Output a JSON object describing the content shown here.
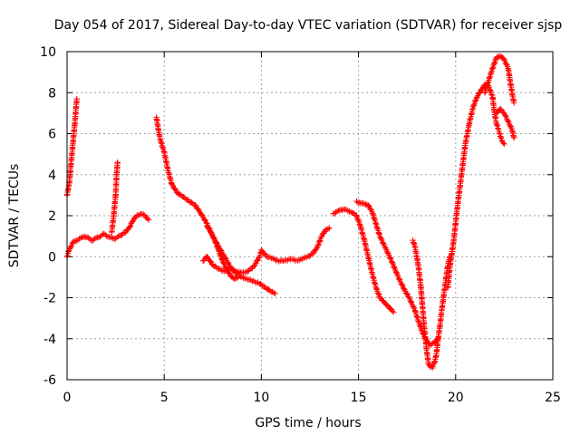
{
  "chart_data": {
    "type": "scatter",
    "title": "Day 054 of 2017, Sidereal Day-to-day VTEC variation (SDTVAR) for receiver sjsp",
    "xlabel": "GPS time / hours",
    "ylabel": "SDTVAR / TECUs",
    "xlim": [
      0,
      25
    ],
    "ylim": [
      -6,
      10
    ],
    "xticks": [
      0,
      5,
      10,
      15,
      20,
      25
    ],
    "yticks": [
      -6,
      -4,
      -2,
      0,
      2,
      4,
      6,
      8,
      10
    ],
    "grid": true,
    "legend": "none",
    "marker": "+",
    "series_color": "#ff0000",
    "series": [
      {
        "points": [
          [
            0.0,
            3.0
          ],
          [
            0.1,
            3.5
          ],
          [
            0.2,
            4.5
          ],
          [
            0.3,
            5.5
          ],
          [
            0.4,
            6.5
          ],
          [
            0.5,
            7.7
          ]
        ]
      },
      {
        "points": [
          [
            0.0,
            0.0
          ],
          [
            0.1,
            0.3
          ],
          [
            0.2,
            0.5
          ],
          [
            0.3,
            0.7
          ],
          [
            0.5,
            0.8
          ],
          [
            0.7,
            0.9
          ],
          [
            0.9,
            1.0
          ],
          [
            1.1,
            0.9
          ],
          [
            1.3,
            0.8
          ],
          [
            1.5,
            0.9
          ],
          [
            1.7,
            1.0
          ],
          [
            1.9,
            1.1
          ],
          [
            2.1,
            1.0
          ],
          [
            2.3,
            0.9
          ],
          [
            2.5,
            0.9
          ],
          [
            2.7,
            1.0
          ],
          [
            3.0,
            1.2
          ],
          [
            3.2,
            1.4
          ],
          [
            3.4,
            1.8
          ],
          [
            3.6,
            2.0
          ],
          [
            3.8,
            2.1
          ],
          [
            4.0,
            2.0
          ],
          [
            4.2,
            1.8
          ]
        ]
      },
      {
        "points": [
          [
            2.3,
            1.2
          ],
          [
            2.4,
            2.0
          ],
          [
            2.5,
            3.0
          ],
          [
            2.55,
            4.0
          ],
          [
            2.6,
            4.6
          ]
        ]
      },
      {
        "points": [
          [
            4.6,
            6.8
          ],
          [
            4.7,
            6.2
          ],
          [
            4.8,
            5.7
          ],
          [
            5.0,
            5.1
          ],
          [
            5.2,
            4.2
          ],
          [
            5.4,
            3.5
          ],
          [
            5.7,
            3.1
          ],
          [
            6.0,
            2.9
          ],
          [
            6.3,
            2.7
          ],
          [
            6.6,
            2.5
          ],
          [
            6.9,
            2.1
          ],
          [
            7.2,
            1.6
          ],
          [
            7.5,
            1.0
          ],
          [
            7.8,
            0.5
          ],
          [
            8.1,
            0.0
          ],
          [
            8.4,
            -0.5
          ],
          [
            8.7,
            -0.8
          ],
          [
            9.0,
            -1.0
          ],
          [
            9.3,
            -1.1
          ],
          [
            9.6,
            -1.2
          ],
          [
            9.9,
            -1.3
          ],
          [
            10.2,
            -1.5
          ],
          [
            10.5,
            -1.7
          ],
          [
            10.7,
            -1.8
          ]
        ]
      },
      {
        "points": [
          [
            7.0,
            -0.2
          ],
          [
            7.2,
            0.0
          ],
          [
            7.5,
            -0.4
          ],
          [
            7.8,
            -0.6
          ],
          [
            8.1,
            -0.7
          ],
          [
            8.4,
            -0.6
          ],
          [
            8.7,
            -0.7
          ],
          [
            9.0,
            -0.8
          ],
          [
            9.3,
            -0.7
          ],
          [
            9.6,
            -0.5
          ],
          [
            9.9,
            0.0
          ],
          [
            10.0,
            0.3
          ],
          [
            10.3,
            0.0
          ],
          [
            10.6,
            -0.1
          ],
          [
            10.9,
            -0.2
          ],
          [
            11.2,
            -0.2
          ],
          [
            11.5,
            -0.1
          ],
          [
            11.8,
            -0.2
          ],
          [
            12.1,
            -0.1
          ],
          [
            12.4,
            0.0
          ],
          [
            12.7,
            0.2
          ],
          [
            12.9,
            0.5
          ],
          [
            13.1,
            1.0
          ],
          [
            13.3,
            1.3
          ],
          [
            13.5,
            1.4
          ]
        ]
      },
      {
        "points": [
          [
            7.2,
            1.5
          ],
          [
            7.4,
            1.2
          ],
          [
            7.6,
            0.8
          ],
          [
            7.8,
            0.3
          ],
          [
            8.0,
            -0.2
          ],
          [
            8.2,
            -0.6
          ],
          [
            8.4,
            -0.9
          ],
          [
            8.6,
            -1.1
          ],
          [
            8.8,
            -1.0
          ]
        ]
      },
      {
        "points": [
          [
            13.7,
            2.1
          ],
          [
            13.9,
            2.2
          ],
          [
            14.1,
            2.3
          ],
          [
            14.3,
            2.3
          ],
          [
            14.6,
            2.2
          ],
          [
            14.9,
            2.0
          ],
          [
            15.1,
            1.5
          ],
          [
            15.3,
            0.8
          ],
          [
            15.5,
            0.0
          ],
          [
            15.7,
            -0.8
          ],
          [
            15.9,
            -1.5
          ],
          [
            16.1,
            -2.0
          ],
          [
            16.4,
            -2.3
          ],
          [
            16.7,
            -2.6
          ],
          [
            16.8,
            -2.7
          ]
        ]
      },
      {
        "points": [
          [
            14.9,
            2.7
          ],
          [
            15.1,
            2.6
          ],
          [
            15.3,
            2.6
          ],
          [
            15.5,
            2.5
          ],
          [
            15.7,
            2.2
          ],
          [
            15.9,
            1.6
          ],
          [
            16.1,
            1.0
          ],
          [
            16.4,
            0.4
          ],
          [
            16.7,
            -0.2
          ],
          [
            17.0,
            -0.9
          ],
          [
            17.3,
            -1.5
          ],
          [
            17.6,
            -2.0
          ],
          [
            17.9,
            -2.6
          ],
          [
            18.1,
            -3.2
          ],
          [
            18.3,
            -3.7
          ],
          [
            18.5,
            -4.1
          ],
          [
            18.7,
            -4.3
          ],
          [
            18.9,
            -4.2
          ],
          [
            19.1,
            -4.0
          ]
        ]
      },
      {
        "points": [
          [
            17.8,
            0.8
          ],
          [
            17.9,
            0.5
          ],
          [
            18.0,
            0.0
          ],
          [
            18.1,
            -0.6
          ],
          [
            18.2,
            -1.4
          ],
          [
            18.3,
            -2.5
          ],
          [
            18.4,
            -3.6
          ],
          [
            18.5,
            -4.5
          ],
          [
            18.6,
            -5.2
          ],
          [
            18.7,
            -5.4
          ],
          [
            18.8,
            -5.4
          ],
          [
            18.9,
            -5.2
          ],
          [
            19.0,
            -4.8
          ],
          [
            19.1,
            -4.0
          ],
          [
            19.2,
            -3.3
          ],
          [
            19.3,
            -2.5
          ],
          [
            19.4,
            -1.8
          ],
          [
            19.5,
            -1.1
          ],
          [
            19.6,
            -0.4
          ],
          [
            19.7,
            0.0
          ]
        ]
      },
      {
        "points": [
          [
            19.6,
            -1.5
          ],
          [
            19.7,
            -0.5
          ],
          [
            19.9,
            0.8
          ],
          [
            20.1,
            2.5
          ],
          [
            20.3,
            4.0
          ],
          [
            20.5,
            5.5
          ],
          [
            20.7,
            6.5
          ],
          [
            20.9,
            7.3
          ],
          [
            21.1,
            7.8
          ],
          [
            21.3,
            8.1
          ],
          [
            21.5,
            8.4
          ],
          [
            21.7,
            8.3
          ],
          [
            21.9,
            7.8
          ],
          [
            22.0,
            7.0
          ],
          [
            22.1,
            6.5
          ],
          [
            22.2,
            6.2
          ],
          [
            22.3,
            5.9
          ],
          [
            22.4,
            5.6
          ],
          [
            22.5,
            5.5
          ]
        ]
      },
      {
        "points": [
          [
            21.5,
            8.0
          ],
          [
            21.7,
            8.6
          ],
          [
            21.9,
            9.2
          ],
          [
            22.1,
            9.7
          ],
          [
            22.3,
            9.8
          ],
          [
            22.5,
            9.6
          ],
          [
            22.7,
            9.2
          ],
          [
            22.8,
            8.6
          ],
          [
            22.9,
            8.0
          ],
          [
            23.0,
            7.5
          ]
        ]
      },
      {
        "points": [
          [
            22.1,
            7.0
          ],
          [
            22.3,
            7.2
          ],
          [
            22.5,
            7.0
          ],
          [
            22.7,
            6.6
          ],
          [
            22.9,
            6.2
          ],
          [
            23.0,
            5.8
          ]
        ]
      }
    ]
  }
}
